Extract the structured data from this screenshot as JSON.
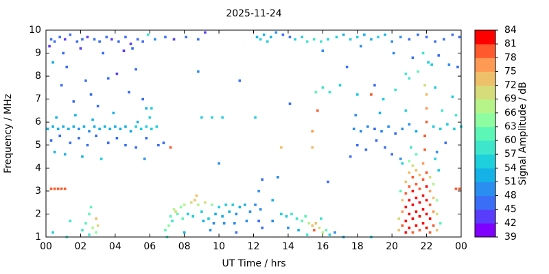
{
  "chart_data": {
    "type": "scatter",
    "title": "2025-11-24",
    "x_label": "UT Time / hrs",
    "y_label": "Frequency / MHz",
    "xlim": [
      0,
      24
    ],
    "xticks": [
      {
        "value": 0,
        "label": "00"
      },
      {
        "value": 2,
        "label": "02"
      },
      {
        "value": 4,
        "label": "04"
      },
      {
        "value": 6,
        "label": "06"
      },
      {
        "value": 8,
        "label": "08"
      },
      10,
      12,
      14,
      16,
      18,
      20,
      22,
      {
        "value": 24,
        "label": "00"
      }
    ],
    "ylim": [
      1,
      10
    ],
    "yticks": [
      1,
      2,
      3,
      4,
      5,
      6,
      7,
      8,
      9,
      10
    ],
    "colorbar": {
      "label": "Signal Amplitude / dB",
      "lim": [
        39,
        84
      ],
      "ticks": [
        39,
        42,
        45,
        48,
        51,
        54,
        57,
        60,
        63,
        66,
        69,
        72,
        75,
        78,
        81,
        84
      ],
      "colors": [
        "#7f00ff",
        "#5a3cfc",
        "#3a6ef6",
        "#2a8ef0",
        "#14b2e6",
        "#1ecfdc",
        "#3ee6cc",
        "#5cf6b6",
        "#8efca0",
        "#b6f48a",
        "#d6dc7a",
        "#efc06a",
        "#ff9a54",
        "#ff5a2e",
        "#ff0000"
      ]
    },
    "x": [
      0.3,
      0.5,
      0.8,
      1.1,
      1.4,
      1.8,
      2.1,
      2.4,
      2.8,
      3.1,
      3.5,
      3.8,
      4.2,
      4.6,
      4.9,
      5.3,
      5.6,
      5.9,
      6.3,
      6.9,
      7.4,
      8.1,
      8.8,
      9.2,
      0.2,
      1.0,
      2.0,
      3.3,
      4.5,
      5.0,
      0.4,
      1.2,
      2.3,
      3.6,
      4.8,
      5.6,
      5.8,
      0.9,
      2.6,
      4.1,
      5.2,
      3.0,
      1.6,
      6.1,
      0.1,
      0.4,
      0.7,
      1.0,
      1.3,
      1.6,
      1.9,
      2.2,
      2.5,
      2.8,
      3.1,
      3.4,
      3.7,
      4.0,
      4.3,
      4.6,
      4.9,
      5.2,
      5.5,
      5.8,
      6.1,
      6.4,
      0.3,
      0.8,
      1.4,
      1.9,
      2.4,
      2.9,
      3.6,
      4.1,
      4.6,
      5.2,
      5.8,
      0.6,
      1.7,
      2.7,
      3.9,
      5.3,
      6.0,
      1.1,
      2.1,
      3.2,
      0.5,
      6.5,
      5.7,
      0.3,
      0.5,
      0.7,
      0.9,
      1.1,
      23.7,
      23.9,
      2.1,
      2.3,
      2.5,
      2.6,
      2.7,
      2.9,
      2.9,
      2.5,
      3.0,
      1.4,
      0.4,
      1.2,
      6.9,
      7.1,
      7.2,
      7.4,
      7.6,
      7.8,
      8.0,
      8.2,
      8.4,
      8.6,
      8.8,
      9.0,
      9.2,
      9.4,
      9.6,
      9.8,
      10.0,
      10.2,
      10.4,
      10.6,
      10.8,
      11.0,
      11.2,
      11.5,
      11.8,
      12.1,
      12.4,
      7.3,
      7.9,
      8.5,
      9.1,
      9.7,
      10.3,
      10.9,
      11.6,
      12.3,
      7.0,
      8.0,
      9.5,
      11.0,
      12.5,
      8.7,
      7.5,
      13.6,
      13.9,
      14.2,
      14.5,
      14.8,
      15.0,
      15.2,
      15.4,
      15.5,
      15.6,
      15.8,
      16.0,
      16.2,
      16.4,
      14.6,
      15.1,
      15.9,
      16.7,
      17.2,
      18.8,
      13.1,
      14.0,
      9.0,
      9.6,
      10.2,
      12.1,
      13.6,
      15.4,
      15.4,
      15.7,
      10.0,
      12.3,
      13.4,
      11.2,
      7.2,
      6.8,
      8.8,
      12.5,
      14.1,
      16.3,
      13.1,
      12.2,
      12.4,
      12.6,
      12.8,
      13.0,
      13.3,
      13.7,
      14.1,
      14.4,
      14.8,
      15.1,
      15.5,
      15.9,
      16.3,
      16.8,
      17.2,
      17.6,
      18.0,
      18.4,
      18.8,
      19.2,
      19.6,
      20.0,
      20.5,
      21.0,
      21.5,
      22.0,
      22.5,
      23.0,
      23.5,
      23.9,
      16.0,
      18.2,
      20.1,
      22.7,
      23.3,
      17.4,
      19.0,
      21.2,
      23.8,
      15.6,
      16.0,
      16.4,
      17.0,
      18.0,
      19.5,
      20.2,
      21.0,
      22.5,
      23.5,
      20.8,
      21.5,
      22.3,
      18.8,
      17.8,
      18.2,
      18.6,
      19.0,
      19.4,
      19.8,
      20.2,
      20.6,
      21.0,
      21.4,
      22.4,
      22.8,
      23.2,
      23.6,
      24.0,
      18.0,
      18.5,
      19.1,
      19.6,
      20.0,
      20.5,
      17.9,
      19.3,
      20.8,
      22.9,
      23.7,
      22.6,
      23.1,
      17.6,
      20.4,
      20.4,
      20.6,
      20.6,
      20.6,
      20.8,
      20.8,
      20.8,
      20.8,
      20.8,
      21.0,
      21.0,
      21.0,
      21.0,
      21.0,
      21.0,
      21.2,
      21.2,
      21.2,
      21.2,
      21.2,
      21.2,
      21.4,
      21.4,
      21.4,
      21.4,
      21.4,
      21.4,
      21.6,
      21.6,
      21.6,
      21.6,
      21.6,
      21.8,
      21.8,
      21.8,
      21.8,
      21.8,
      21.9,
      21.9,
      22.0,
      22.0,
      22.0,
      21.9,
      22.0,
      22.0,
      22.0,
      22.0,
      22.0,
      22.2,
      22.2,
      22.2,
      22.2,
      22.2,
      22.4,
      22.4,
      22.4,
      22.4,
      22.6,
      22.6,
      22.6,
      22.8,
      20.5,
      22.7,
      20.6,
      22.5,
      21.1,
      22.1,
      21.8
    ],
    "values": [
      9.6,
      9.5,
      9.7,
      9.6,
      9.8,
      9.5,
      9.6,
      9.7,
      9.6,
      9.5,
      9.7,
      9.6,
      9.5,
      9.7,
      9.4,
      9.6,
      9.5,
      9.8,
      9.6,
      9.7,
      9.6,
      9.7,
      9.6,
      9.9,
      9.3,
      9.0,
      9.2,
      9.0,
      9.1,
      9.2,
      8.6,
      8.4,
      7.8,
      7.9,
      7.3,
      7.0,
      6.6,
      7.6,
      7.2,
      8.1,
      8.3,
      6.7,
      6.9,
      6.6,
      5.7,
      5.8,
      5.7,
      5.8,
      5.7,
      5.8,
      5.7,
      5.8,
      5.6,
      5.8,
      5.7,
      5.8,
      5.7,
      5.8,
      5.7,
      5.8,
      5.6,
      5.8,
      5.7,
      5.8,
      5.7,
      5.8,
      5.2,
      5.4,
      5.1,
      5.3,
      5.0,
      5.4,
      5.1,
      5.3,
      5.0,
      4.9,
      5.3,
      6.2,
      6.3,
      6.1,
      6.4,
      6.0,
      6.2,
      4.6,
      4.5,
      4.4,
      4.7,
      5.0,
      4.4,
      3.1,
      3.1,
      3.1,
      3.1,
      3.1,
      3.1,
      3.1,
      1.3,
      1.6,
      2.0,
      2.3,
      1.4,
      1.8,
      1.2,
      1.1,
      1.5,
      1.7,
      1.2,
      1.0,
      1.3,
      1.5,
      1.9,
      2.2,
      2.0,
      2.3,
      2.4,
      2.0,
      2.5,
      2.6,
      2.4,
      2.1,
      2.5,
      1.8,
      2.4,
      2.0,
      2.3,
      1.9,
      2.4,
      2.1,
      2.4,
      2.0,
      2.3,
      2.4,
      2.1,
      2.4,
      2.2,
      1.7,
      1.8,
      1.9,
      1.7,
      1.6,
      1.6,
      1.6,
      1.7,
      1.7,
      1.0,
      1.2,
      1.3,
      1.2,
      1.4,
      2.8,
      2.1,
      2.0,
      1.9,
      2.0,
      1.8,
      1.7,
      1.9,
      1.6,
      1.5,
      1.3,
      1.6,
      1.4,
      1.2,
      1.3,
      1.1,
      1.3,
      1.1,
      1.8,
      1.2,
      1.0,
      1.0,
      1.7,
      1.4,
      6.2,
      6.2,
      6.2,
      6.2,
      4.9,
      4.9,
      5.6,
      6.5,
      4.2,
      3.0,
      3.6,
      7.8,
      4.9,
      5.1,
      8.2,
      3.5,
      6.8,
      3.4,
      2.6,
      9.7,
      9.6,
      9.8,
      9.5,
      9.7,
      9.9,
      9.8,
      9.7,
      9.6,
      9.7,
      9.5,
      9.6,
      9.5,
      9.6,
      9.7,
      9.8,
      9.6,
      9.7,
      9.8,
      9.6,
      9.7,
      9.8,
      9.5,
      9.7,
      9.6,
      9.8,
      9.7,
      9.5,
      9.6,
      9.8,
      9.7,
      9.1,
      9.3,
      9.0,
      8.9,
      8.5,
      8.4,
      7.6,
      8.8,
      8.4,
      7.3,
      7.5,
      7.3,
      7.6,
      7.2,
      7.0,
      7.4,
      7.9,
      7.5,
      7.1,
      8.1,
      8.2,
      8.5,
      7.2,
      5.7,
      5.6,
      5.8,
      5.7,
      5.6,
      5.8,
      5.5,
      5.7,
      5.9,
      5.6,
      5.8,
      5.7,
      5.9,
      5.7,
      5.8,
      5.0,
      4.8,
      5.2,
      4.9,
      4.6,
      4.4,
      6.3,
      6.4,
      6.5,
      6.5,
      6.3,
      4.7,
      5.1,
      4.5,
      1.3,
      1.8,
      1.5,
      2.1,
      2.6,
      1.2,
      1.7,
      2.3,
      2.9,
      3.4,
      1.4,
      2.0,
      2.6,
      3.2,
      3.8,
      4.3,
      1.2,
      1.8,
      2.4,
      3.0,
      3.6,
      4.1,
      1.5,
      2.1,
      2.7,
      3.3,
      3.9,
      4.6,
      1.3,
      1.9,
      2.5,
      3.1,
      3.7,
      1.6,
      2.2,
      2.8,
      3.5,
      4.2,
      4.8,
      5.4,
      6.0,
      6.6,
      7.2,
      7.6,
      1.4,
      2.0,
      2.6,
      3.2,
      3.8,
      1.2,
      1.8,
      2.4,
      3.0,
      3.6,
      1.5,
      2.1,
      2.7,
      3.3,
      1.3,
      2.0,
      2.6,
      1.6,
      3.0,
      3.9,
      4.2,
      4.4,
      4.9,
      8.6,
      9.0
    ],
    "z": [
      46,
      45,
      45,
      44,
      46,
      45,
      45,
      44,
      46,
      45,
      46,
      44,
      45,
      46,
      44,
      45,
      46,
      57,
      48,
      45,
      44,
      46,
      45,
      44,
      44,
      45,
      44,
      45,
      44,
      46,
      52,
      45,
      46,
      45,
      46,
      47,
      52,
      45,
      46,
      44,
      45,
      47,
      46,
      54,
      53,
      52,
      52,
      51,
      52,
      51,
      50,
      51,
      50,
      52,
      51,
      52,
      53,
      52,
      51,
      52,
      53,
      54,
      55,
      54,
      54,
      54,
      46,
      47,
      46,
      46,
      46,
      47,
      45,
      47,
      46,
      47,
      46,
      51,
      52,
      51,
      52,
      53,
      54,
      52,
      53,
      55,
      51,
      47,
      48,
      80,
      79,
      80,
      78,
      79,
      80,
      79,
      58,
      60,
      62,
      61,
      67,
      72,
      64,
      59,
      70,
      58,
      55,
      57,
      62,
      64,
      62,
      66,
      60,
      64,
      68,
      55,
      70,
      72,
      67,
      55,
      69,
      54,
      63,
      52,
      55,
      51,
      56,
      53,
      54,
      50,
      52,
      53,
      50,
      49,
      48,
      58,
      60,
      56,
      52,
      50,
      50,
      49,
      48,
      47,
      57,
      52,
      48,
      47,
      47,
      74,
      70,
      55,
      56,
      57,
      58,
      60,
      62,
      68,
      74,
      78,
      72,
      70,
      66,
      60,
      56,
      52,
      58,
      57,
      50,
      52,
      55,
      48,
      50,
      56,
      55,
      54,
      55,
      72,
      73,
      76,
      79,
      48,
      50,
      50,
      47,
      80,
      47,
      48,
      46,
      47,
      47,
      52,
      52,
      54,
      53,
      55,
      52,
      48,
      46,
      45,
      56,
      55,
      57,
      58,
      57,
      56,
      54,
      53,
      55,
      54,
      53,
      52,
      55,
      52,
      50,
      48,
      47,
      46,
      47,
      46,
      45,
      46,
      45,
      50,
      48,
      48,
      47,
      48,
      47,
      47,
      46,
      47,
      60,
      58,
      57,
      56,
      55,
      54,
      58,
      57,
      56,
      55,
      58,
      60,
      56,
      78,
      50,
      48,
      49,
      47,
      48,
      49,
      47,
      48,
      50,
      52,
      54,
      55,
      56,
      55,
      54,
      47,
      46,
      47,
      46,
      47,
      50,
      50,
      52,
      55,
      57,
      58,
      48,
      47,
      46,
      74,
      70,
      80,
      77,
      73,
      82,
      84,
      81,
      78,
      72,
      83,
      82,
      84,
      80,
      74,
      65,
      80,
      84,
      83,
      82,
      78,
      70,
      81,
      84,
      83,
      79,
      72,
      60,
      79,
      83,
      82,
      78,
      73,
      82,
      84,
      83,
      80,
      76,
      80,
      78,
      80,
      75,
      72,
      70,
      83,
      84,
      82,
      81,
      79,
      80,
      81,
      79,
      75,
      70,
      78,
      76,
      72,
      66,
      73,
      70,
      64,
      60,
      60,
      55,
      56,
      55,
      58,
      56,
      58
    ]
  }
}
